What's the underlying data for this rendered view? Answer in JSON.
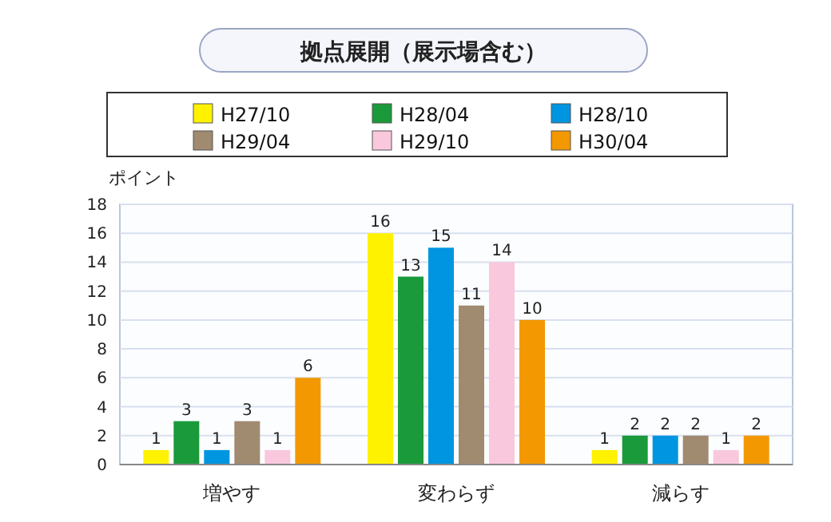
{
  "chart_data": {
    "type": "bar",
    "title": "拠点展開（展示場含む）",
    "ylabel": "ポイント",
    "categories": [
      "増やす",
      "変わらず",
      "減らす"
    ],
    "series": [
      {
        "name": "H27/10",
        "color": "#fff200",
        "values": [
          1,
          16,
          1
        ]
      },
      {
        "name": "H28/04",
        "color": "#1a9a3a",
        "values": [
          3,
          13,
          2
        ]
      },
      {
        "name": "H28/10",
        "color": "#0095e0",
        "values": [
          1,
          15,
          2
        ]
      },
      {
        "name": "H29/04",
        "color": "#a08a70",
        "values": [
          3,
          11,
          2
        ]
      },
      {
        "name": "H29/10",
        "color": "#f9c8dc",
        "values": [
          1,
          14,
          1
        ]
      },
      {
        "name": "H30/04",
        "color": "#f39800",
        "values": [
          6,
          10,
          2
        ]
      }
    ],
    "ylim": [
      0,
      18
    ],
    "yticks": [
      0,
      2,
      4,
      6,
      8,
      10,
      12,
      14,
      16,
      18
    ],
    "grid": "y",
    "legend": "top",
    "data_labels": true
  }
}
